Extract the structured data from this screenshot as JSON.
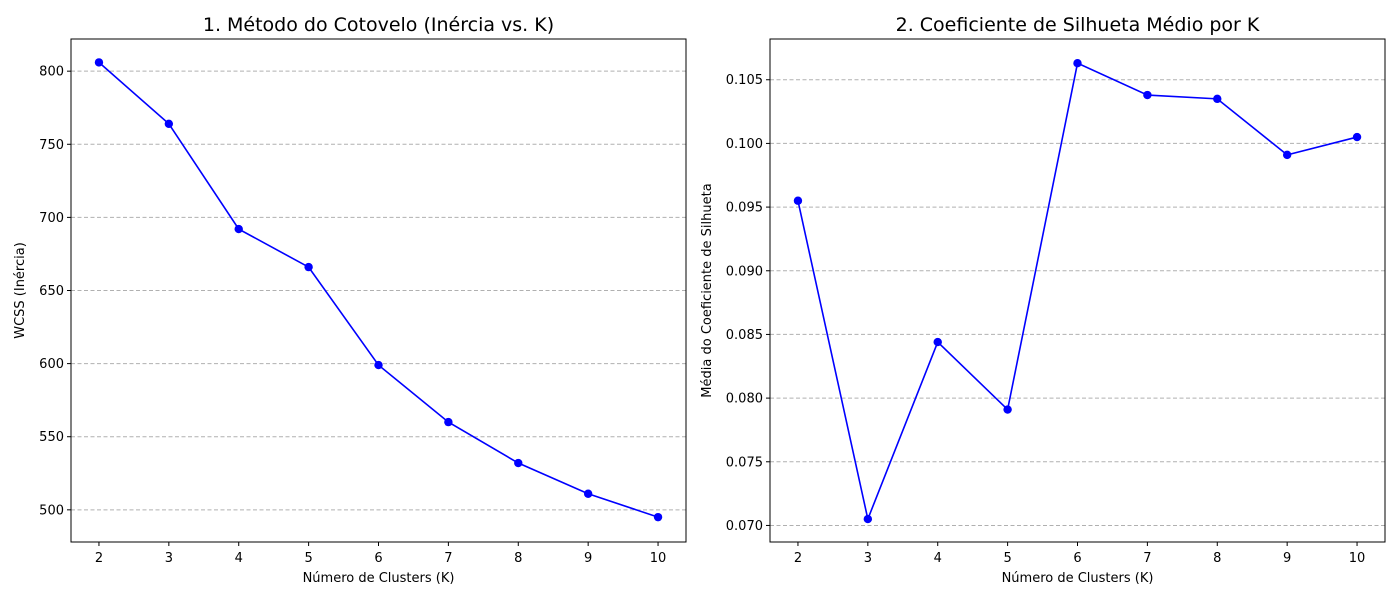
{
  "chart_data": [
    {
      "type": "line",
      "title": "1. Método do Cotovelo (Inércia vs. K)",
      "xlabel": "Número de Clusters (K)",
      "ylabel": "WCSS (Inércia)",
      "x": [
        2,
        3,
        4,
        5,
        6,
        7,
        8,
        9,
        10
      ],
      "xticks": [
        "2",
        "3",
        "4",
        "5",
        "6",
        "7",
        "8",
        "9",
        "10"
      ],
      "xlim": [
        1.6,
        10.4
      ],
      "ylim": [
        478,
        822
      ],
      "yticks": [
        "500",
        "550",
        "600",
        "650",
        "700",
        "750",
        "800"
      ],
      "grid": "y-dashed",
      "series": [
        {
          "values": [
            806,
            764,
            692,
            666,
            599,
            560,
            532,
            511,
            495
          ],
          "color": "#0000ff",
          "marker": "circle"
        }
      ]
    },
    {
      "type": "line",
      "title": "2. Coeficiente de Silhueta Médio por K",
      "xlabel": "Número de Clusters (K)",
      "ylabel": "Média do Coeficiente de Silhueta",
      "x": [
        2,
        3,
        4,
        5,
        6,
        7,
        8,
        9,
        10
      ],
      "xticks": [
        "2",
        "3",
        "4",
        "5",
        "6",
        "7",
        "8",
        "9",
        "10"
      ],
      "xlim": [
        1.6,
        10.4
      ],
      "ylim": [
        0.0687,
        0.1082
      ],
      "yticks": [
        "0.070",
        "0.075",
        "0.080",
        "0.085",
        "0.090",
        "0.095",
        "0.100",
        "0.105"
      ],
      "grid": "y-dashed",
      "series": [
        {
          "values": [
            0.0955,
            0.0705,
            0.0844,
            0.0791,
            0.1063,
            0.1038,
            0.1035,
            0.0991,
            0.1005
          ],
          "color": "#0000ff",
          "marker": "circle"
        }
      ]
    }
  ]
}
